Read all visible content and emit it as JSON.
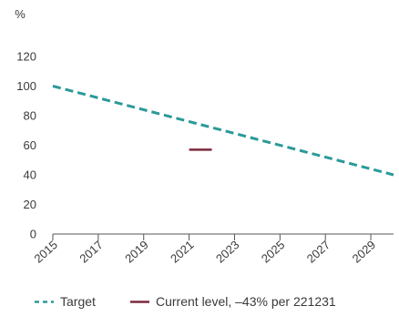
{
  "chart_data": {
    "type": "line",
    "ylabel": "%",
    "ylim": [
      0,
      120
    ],
    "yticks": [
      0,
      20,
      40,
      60,
      80,
      100,
      120
    ],
    "xlim": [
      2015,
      2030
    ],
    "xticks": [
      "2015",
      "2017",
      "2019",
      "2021",
      "2023",
      "2025",
      "2027",
      "2029"
    ],
    "grid": false,
    "legend_position": "bottom",
    "series": [
      {
        "name": "Target",
        "style": "dashed",
        "color": "#2a9a99",
        "x": [
          2015,
          2030
        ],
        "y": [
          100,
          40
        ]
      },
      {
        "name": "Current level, –43% per 221231",
        "style": "solid",
        "color": "#7b2a3c",
        "x": [
          2021,
          2022
        ],
        "y": [
          57,
          57
        ]
      }
    ]
  }
}
